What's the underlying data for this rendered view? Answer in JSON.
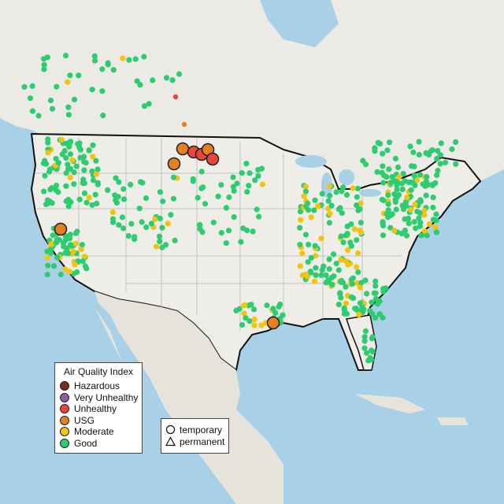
{
  "colors": {
    "ocean": "#a8d0e6",
    "land": "#eceae4",
    "mexico": "#e6e3da",
    "border_us": "#111111",
    "state_lines": "#b5b5b5"
  },
  "legend": {
    "title": "Air Quality Index",
    "items": [
      {
        "label": "Hazardous",
        "color": "#7e2b22"
      },
      {
        "label": "Very Unhealthy",
        "color": "#8e5aa8"
      },
      {
        "label": "Unhealthy",
        "color": "#e8453c"
      },
      {
        "label": "USG",
        "color": "#e67e22"
      },
      {
        "label": "Moderate",
        "color": "#f1c40f"
      },
      {
        "label": "Good",
        "color": "#2ecc71"
      }
    ]
  },
  "monitor_types": {
    "items": [
      {
        "label": "temporary",
        "shape": "circle-icon"
      },
      {
        "label": "permanent",
        "shape": "triangle-icon"
      }
    ]
  }
}
